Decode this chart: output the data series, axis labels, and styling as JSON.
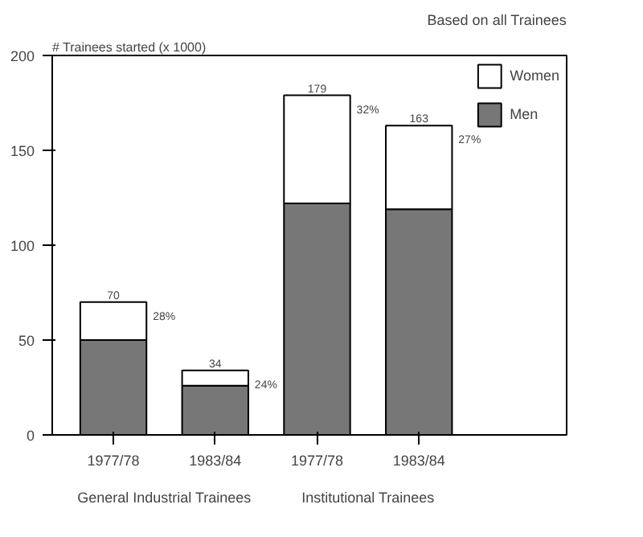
{
  "chart_data": {
    "type": "bar",
    "stacked": true,
    "subtitle": "Based on all Trainees",
    "ylabel": "# Trainees started (x 1000)",
    "categories": [
      "1977/78",
      "1983/84",
      "1977/78",
      "1983/84"
    ],
    "series": [
      {
        "name": "Men",
        "color": "#777777",
        "values": [
          50,
          26,
          122,
          119
        ]
      },
      {
        "name": "Women",
        "color": "#ffffff",
        "values": [
          20,
          8,
          57,
          44
        ]
      }
    ],
    "totals": [
      "70",
      "34",
      "179",
      "163"
    ],
    "annotations": [
      "General Industrial Trainees",
      "Institutional Trainees",
      "28%",
      "24%",
      "32%",
      "27%"
    ],
    "ylim": [
      0,
      200
    ],
    "yticks": [
      0,
      50,
      100,
      150,
      200
    ],
    "grid": false,
    "legend": "top right"
  }
}
